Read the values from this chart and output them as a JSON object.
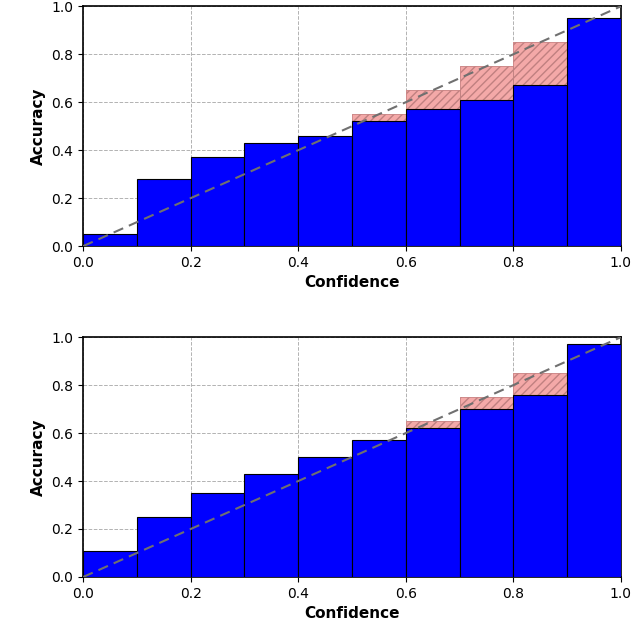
{
  "top_bars": [
    0.05,
    0.28,
    0.37,
    0.43,
    0.46,
    0.52,
    0.57,
    0.61,
    0.67,
    0.95
  ],
  "bottom_bars": [
    0.11,
    0.25,
    0.35,
    0.43,
    0.5,
    0.57,
    0.62,
    0.7,
    0.76,
    0.97
  ],
  "bin_edges": [
    0.0,
    0.1,
    0.2,
    0.3,
    0.4,
    0.5,
    0.6,
    0.7,
    0.8,
    0.9,
    1.0
  ],
  "bar_color": "#0000FF",
  "overconf_color": "#F4A9A8",
  "bar_edgecolor": "#000000",
  "diagonal_color": "#707070",
  "xlabel": "Confidence",
  "ylabel": "Accuracy",
  "xlim": [
    0.0,
    1.0
  ],
  "ylim": [
    0.0,
    1.0
  ],
  "yticks": [
    0.0,
    0.2,
    0.4,
    0.6,
    0.8,
    1.0
  ],
  "xticks": [
    0.0,
    0.2,
    0.4,
    0.6,
    0.8,
    1.0
  ],
  "hatch_color": "#c08080",
  "hatch_pattern": "////",
  "grid_color": "#aaaaaa",
  "grid_style": "--"
}
